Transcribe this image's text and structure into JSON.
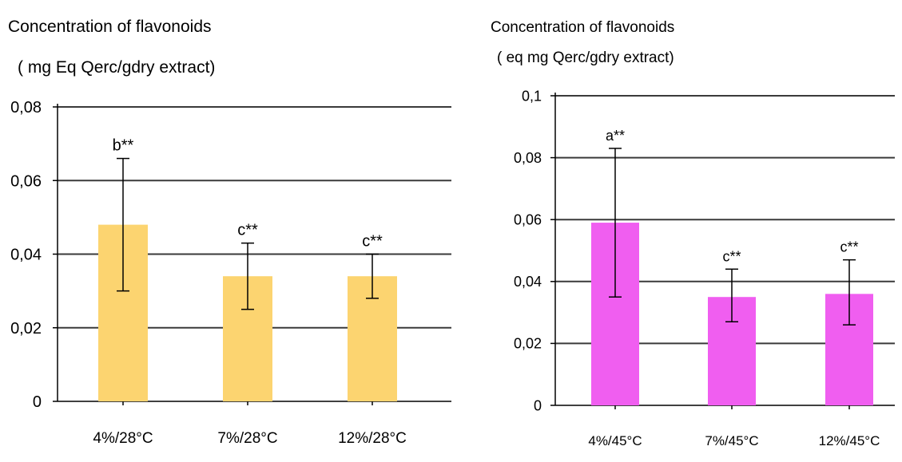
{
  "chart_data": [
    {
      "type": "bar",
      "title": "Concentration of flavonoids",
      "subtitle": "( mg Eq Qerc/gdry extract)",
      "categories": [
        "4%/28°C",
        "7%/28°C",
        "12%/28°C"
      ],
      "values": [
        0.048,
        0.034,
        0.034
      ],
      "error_low": [
        0.03,
        0.025,
        0.028
      ],
      "error_high": [
        0.066,
        0.043,
        0.04
      ],
      "annotations": [
        "b**",
        "c**",
        "c**"
      ],
      "yticks": [
        "0",
        "0,02",
        "0,04",
        "0,06",
        "0,08"
      ],
      "ylim": [
        0,
        0.08
      ],
      "grid": true,
      "bar_color": "#fcd470"
    },
    {
      "type": "bar",
      "title": "Concentration of flavonoids",
      "subtitle": "( eq mg Qerc/gdry extract)",
      "categories": [
        "4%/45°C",
        "7%/45°C",
        "12%/45°C"
      ],
      "values": [
        0.059,
        0.035,
        0.036
      ],
      "error_low": [
        0.035,
        0.027,
        0.026
      ],
      "error_high": [
        0.083,
        0.044,
        0.047
      ],
      "annotations": [
        "a**",
        "c**",
        "c**"
      ],
      "yticks": [
        "0",
        "0,02",
        "0,04",
        "0,06",
        "0,08",
        "0,1"
      ],
      "ylim": [
        0,
        0.1
      ],
      "grid": true,
      "bar_color": "#f05ef0"
    }
  ]
}
